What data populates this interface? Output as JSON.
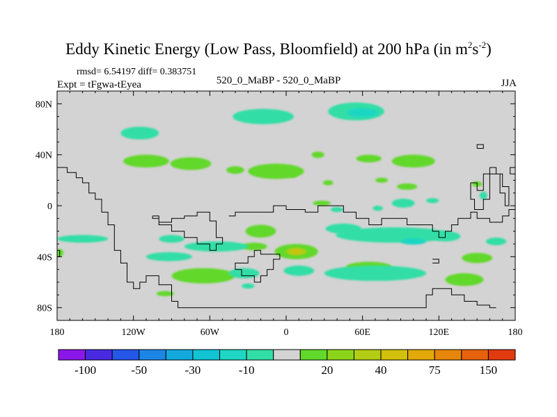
{
  "title": {
    "main": "Eddy Kinetic Energy (Low Pass, Bloomfield) at 200 hPa (in m",
    "exp1": "2",
    "mid": "s",
    "exp2": "-2",
    "close": ")"
  },
  "stats_label": "rmsd= 6.54197 diff= 0.383751",
  "experiment_label": "Expt = tFgwa-tEyea",
  "comparison_label": "520_0_MaBP - 520_0_MaBP",
  "season_label": "JJA",
  "chart_data": {
    "type": "heatmap",
    "title": "Eddy Kinetic Energy (Low Pass, Bloomfield) at 200 hPa (in m2s-2)",
    "subtitle": "520_0_MaBP - 520_0_MaBP",
    "xlim": [
      -180,
      180
    ],
    "ylim": [
      -90,
      90
    ],
    "x_ticks": [
      {
        "value": -180,
        "label": "180"
      },
      {
        "value": -120,
        "label": "120W"
      },
      {
        "value": -60,
        "label": "60W"
      },
      {
        "value": 0,
        "label": "0"
      },
      {
        "value": 60,
        "label": "60E"
      },
      {
        "value": 120,
        "label": "120E"
      },
      {
        "value": 180,
        "label": "180"
      }
    ],
    "y_ticks": [
      {
        "value": 80,
        "label": "80N"
      },
      {
        "value": 40,
        "label": "40N"
      },
      {
        "value": 0,
        "label": "0"
      },
      {
        "value": -40,
        "label": "40S"
      },
      {
        "value": -80,
        "label": "80S"
      }
    ],
    "colorbar": {
      "colors": [
        "#8a17e8",
        "#4a2ae0",
        "#2457e8",
        "#1c86e6",
        "#14a9dc",
        "#12c3d4",
        "#1fd6c4",
        "#33dea6",
        "#d3d3d3",
        "#62d82a",
        "#8cd41c",
        "#b3cc14",
        "#d2c00c",
        "#e3a80a",
        "#e6860a",
        "#e6620c",
        "#e23a10"
      ],
      "labels": [
        {
          "boundary": 1,
          "text": "-100"
        },
        {
          "boundary": 3,
          "text": "-50"
        },
        {
          "boundary": 5,
          "text": "-30"
        },
        {
          "boundary": 7,
          "text": "-10"
        },
        {
          "boundary": 10,
          "text": "20"
        },
        {
          "boundary": 12,
          "text": "40"
        },
        {
          "boundary": 14,
          "text": "75"
        },
        {
          "boundary": 16,
          "text": "150"
        }
      ]
    },
    "field_background": "#d3d3d3",
    "anomalies": [
      {
        "lon": -18,
        "lat": 70,
        "rlon": 24,
        "rlat": 6,
        "color": "#33dea6"
      },
      {
        "lon": 55,
        "lat": 74,
        "rlon": 22,
        "rlat": 7,
        "color": "#33dea6"
      },
      {
        "lon": 60,
        "lat": 73,
        "rlon": 12,
        "rlat": 3.5,
        "color": "#1fd6c4"
      },
      {
        "lon": -115,
        "lat": 57,
        "rlon": 15,
        "rlat": 5,
        "color": "#33dea6"
      },
      {
        "lon": -110,
        "lat": 35,
        "rlon": 18,
        "rlat": 5,
        "color": "#62d82a"
      },
      {
        "lon": -75,
        "lat": 33,
        "rlon": 16,
        "rlat": 5,
        "color": "#62d82a"
      },
      {
        "lon": -40,
        "lat": 28,
        "rlon": 7,
        "rlat": 3,
        "color": "#62d82a"
      },
      {
        "lon": -8,
        "lat": 27,
        "rlon": 22,
        "rlat": 6,
        "color": "#62d82a"
      },
      {
        "lon": 25,
        "lat": 40,
        "rlon": 5,
        "rlat": 2.5,
        "color": "#62d82a"
      },
      {
        "lon": 65,
        "lat": 37,
        "rlon": 10,
        "rlat": 3,
        "color": "#62d82a"
      },
      {
        "lon": 100,
        "lat": 35,
        "rlon": 17,
        "rlat": 5,
        "color": "#62d82a"
      },
      {
        "lon": 5,
        "lat": 24,
        "rlon": 4,
        "rlat": 2,
        "color": "#62d82a"
      },
      {
        "lon": 33,
        "lat": 18,
        "rlon": 4,
        "rlat": 2,
        "color": "#62d82a"
      },
      {
        "lon": 75,
        "lat": 20,
        "rlon": 5,
        "rlat": 2,
        "color": "#62d82a"
      },
      {
        "lon": 95,
        "lat": 15,
        "rlon": 8,
        "rlat": 2.5,
        "color": "#62d82a"
      },
      {
        "lon": 150,
        "lat": 17,
        "rlon": 4,
        "rlat": 2,
        "color": "#62d82a"
      },
      {
        "lon": 28,
        "lat": 2,
        "rlon": 7,
        "rlat": 2,
        "color": "#62d82a"
      },
      {
        "lon": 92,
        "lat": 2,
        "rlon": 9,
        "rlat": 3.5,
        "color": "#33dea6"
      },
      {
        "lon": 115,
        "lat": 4,
        "rlon": 5,
        "rlat": 2,
        "color": "#33dea6"
      },
      {
        "lon": 40,
        "lat": -3,
        "rlon": 5,
        "rlat": 2,
        "color": "#33dea6"
      },
      {
        "lon": 72,
        "lat": -2,
        "rlon": 4,
        "rlat": 2,
        "color": "#33dea6"
      },
      {
        "lon": 155,
        "lat": 8,
        "rlon": 3,
        "rlat": 3,
        "color": "#33dea6"
      },
      {
        "lon": 85,
        "lat": -23,
        "rlon": 46,
        "rlat": 6,
        "color": "#33dea6"
      },
      {
        "lon": 45,
        "lat": -18,
        "rlon": 14,
        "rlat": 4,
        "color": "#33dea6"
      },
      {
        "lon": 125,
        "lat": -24,
        "rlon": 12,
        "rlat": 4,
        "color": "#33dea6"
      },
      {
        "lon": 100,
        "lat": -28,
        "rlon": 10,
        "rlat": 2.5,
        "color": "#1fd6c4"
      },
      {
        "lon": 165,
        "lat": -28,
        "rlon": 8,
        "rlat": 3,
        "color": "#33dea6"
      },
      {
        "lon": -20,
        "lat": -20,
        "rlon": 12,
        "rlat": 5,
        "color": "#62d82a"
      },
      {
        "lon": -25,
        "lat": -32,
        "rlon": 10,
        "rlat": 3,
        "color": "#62d82a"
      },
      {
        "lon": -55,
        "lat": -32,
        "rlon": 25,
        "rlat": 4,
        "color": "#33dea6"
      },
      {
        "lon": -90,
        "lat": -26,
        "rlon": 10,
        "rlat": 3,
        "color": "#33dea6"
      },
      {
        "lon": -160,
        "lat": -26,
        "rlon": 20,
        "rlat": 3,
        "color": "#33dea6"
      },
      {
        "lon": -92,
        "lat": -40,
        "rlon": 18,
        "rlat": 3.5,
        "color": "#33dea6"
      },
      {
        "lon": -178,
        "lat": -37,
        "rlon": 3,
        "rlat": 3,
        "color": "#62d82a"
      },
      {
        "lon": 8,
        "lat": -36,
        "rlon": 17,
        "rlat": 6,
        "color": "#62d82a"
      },
      {
        "lon": 8,
        "lat": -36,
        "rlon": 8,
        "rlat": 3,
        "color": "#b3cc14"
      },
      {
        "lon": 8,
        "lat": -36,
        "rlon": 3.5,
        "rlat": 1.5,
        "color": "#d2c00c"
      },
      {
        "lon": 10,
        "lat": -51,
        "rlon": 12,
        "rlat": 4,
        "color": "#33dea6"
      },
      {
        "lon": -65,
        "lat": -55,
        "rlon": 25,
        "rlat": 6,
        "color": "#62d82a"
      },
      {
        "lon": -33,
        "lat": -53,
        "rlon": 12,
        "rlat": 4,
        "color": "#33dea6"
      },
      {
        "lon": -30,
        "lat": -63,
        "rlon": 5,
        "rlat": 2,
        "color": "#33dea6"
      },
      {
        "lon": 65,
        "lat": -48,
        "rlon": 18,
        "rlat": 4,
        "color": "#62d82a"
      },
      {
        "lon": 70,
        "lat": -53,
        "rlon": 40,
        "rlat": 6,
        "color": "#33dea6"
      },
      {
        "lon": 150,
        "lat": -41,
        "rlon": 12,
        "rlat": 4,
        "color": "#62d82a"
      },
      {
        "lon": 140,
        "lat": -58,
        "rlon": 15,
        "rlat": 5,
        "color": "#62d82a"
      },
      {
        "lon": -95,
        "lat": -69,
        "rlon": 7,
        "rlat": 2,
        "color": "#62d82a"
      }
    ],
    "contours": [
      [
        [
          -180,
          30
        ],
        [
          -172,
          30
        ],
        [
          -172,
          26
        ],
        [
          -165,
          26
        ],
        [
          -165,
          22
        ],
        [
          -160,
          22
        ],
        [
          -160,
          18
        ],
        [
          -155,
          18
        ],
        [
          -155,
          10
        ],
        [
          -150,
          10
        ],
        [
          -150,
          5
        ],
        [
          -145,
          5
        ],
        [
          -145,
          -5
        ],
        [
          -140,
          -5
        ],
        [
          -140,
          -15
        ],
        [
          -135,
          -15
        ],
        [
          -135,
          -35
        ],
        [
          -130,
          -35
        ],
        [
          -130,
          -45
        ],
        [
          -125,
          -45
        ],
        [
          -125,
          -60
        ],
        [
          -120,
          -60
        ],
        [
          -120,
          -65
        ],
        [
          -115,
          -65
        ],
        [
          -115,
          -60
        ],
        [
          -110,
          -60
        ],
        [
          -110,
          -55
        ],
        [
          -100,
          -55
        ],
        [
          -100,
          -62
        ],
        [
          -90,
          -62
        ],
        [
          -90,
          -75
        ],
        [
          -85,
          -75
        ],
        [
          -85,
          -80
        ],
        [
          10,
          -80
        ],
        [
          110,
          -80
        ],
        [
          110,
          -70
        ],
        [
          115,
          -70
        ],
        [
          115,
          -65
        ],
        [
          130,
          -65
        ],
        [
          130,
          -70
        ],
        [
          140,
          -70
        ],
        [
          140,
          -75
        ],
        [
          150,
          -75
        ],
        [
          150,
          -78
        ],
        [
          160,
          -78
        ],
        [
          160,
          -80
        ],
        [
          165,
          -80
        ]
      ],
      [
        [
          -105,
          -8
        ],
        [
          -100,
          -8
        ],
        [
          -100,
          -13
        ],
        [
          -90,
          -13
        ],
        [
          -90,
          -10
        ],
        [
          -80,
          -10
        ],
        [
          -80,
          -8
        ],
        [
          -70,
          -8
        ],
        [
          -70,
          -5
        ],
        [
          -60,
          -5
        ],
        [
          -60,
          -12
        ],
        [
          -55,
          -12
        ],
        [
          -55,
          -25
        ],
        [
          -50,
          -25
        ],
        [
          -50,
          -30
        ],
        [
          -55,
          -30
        ],
        [
          -55,
          -35
        ],
        [
          -60,
          -35
        ],
        [
          -60,
          -30
        ],
        [
          -70,
          -30
        ],
        [
          -70,
          -25
        ],
        [
          -80,
          -25
        ],
        [
          -80,
          -20
        ],
        [
          -90,
          -20
        ],
        [
          -90,
          -15
        ],
        [
          -100,
          -15
        ],
        [
          -100,
          -10
        ],
        [
          -105,
          -10
        ],
        [
          -105,
          -8
        ]
      ],
      [
        [
          -25,
          -35
        ],
        [
          -20,
          -35
        ],
        [
          -20,
          -38
        ],
        [
          -5,
          -38
        ],
        [
          -5,
          -42
        ],
        [
          -10,
          -42
        ],
        [
          -10,
          -50
        ],
        [
          -15,
          -50
        ],
        [
          -15,
          -55
        ],
        [
          -20,
          -55
        ],
        [
          -20,
          -60
        ],
        [
          -25,
          -60
        ],
        [
          -25,
          -55
        ],
        [
          -35,
          -55
        ],
        [
          -35,
          -50
        ],
        [
          -40,
          -50
        ],
        [
          -40,
          -45
        ],
        [
          -30,
          -45
        ],
        [
          -30,
          -40
        ],
        [
          -25,
          -40
        ],
        [
          -25,
          -35
        ]
      ],
      [
        [
          -45,
          -8
        ],
        [
          -40,
          -8
        ],
        [
          -40,
          -5
        ],
        [
          -10,
          -5
        ],
        [
          -10,
          0
        ],
        [
          0,
          0
        ],
        [
          0,
          -3
        ],
        [
          15,
          -3
        ],
        [
          15,
          -5
        ],
        [
          25,
          -5
        ],
        [
          25,
          0
        ],
        [
          45,
          0
        ],
        [
          45,
          -5
        ],
        [
          55,
          -5
        ],
        [
          55,
          -10
        ],
        [
          65,
          -10
        ],
        [
          65,
          -15
        ],
        [
          75,
          -15
        ],
        [
          75,
          -10
        ],
        [
          95,
          -10
        ],
        [
          95,
          -15
        ],
        [
          115,
          -15
        ],
        [
          115,
          -20
        ],
        [
          120,
          -20
        ],
        [
          120,
          -25
        ],
        [
          125,
          -25
        ],
        [
          125,
          -20
        ],
        [
          130,
          -20
        ],
        [
          130,
          -15
        ],
        [
          135,
          -15
        ],
        [
          135,
          -10
        ],
        [
          145,
          -10
        ],
        [
          145,
          -5
        ],
        [
          150,
          -5
        ],
        [
          150,
          -10
        ],
        [
          160,
          -10
        ],
        [
          160,
          -13
        ],
        [
          170,
          -13
        ],
        [
          170,
          -8
        ],
        [
          175,
          -8
        ],
        [
          175,
          -3
        ],
        [
          180,
          -3
        ]
      ],
      [
        [
          -180,
          -40
        ],
        [
          -178,
          -40
        ],
        [
          -178,
          -35
        ],
        [
          -180,
          -35
        ]
      ],
      [
        [
          145,
          18
        ],
        [
          150,
          18
        ],
        [
          150,
          12
        ],
        [
          155,
          12
        ],
        [
          155,
          25
        ],
        [
          160,
          25
        ],
        [
          160,
          5
        ],
        [
          155,
          5
        ],
        [
          155,
          -3
        ],
        [
          148,
          -3
        ],
        [
          148,
          5
        ],
        [
          145,
          5
        ],
        [
          145,
          18
        ]
      ],
      [
        [
          160,
          30
        ],
        [
          165,
          30
        ],
        [
          165,
          25
        ],
        [
          170,
          25
        ],
        [
          170,
          15
        ],
        [
          175,
          15
        ],
        [
          175,
          0
        ],
        [
          172,
          0
        ],
        [
          172,
          10
        ],
        [
          168,
          10
        ],
        [
          168,
          25
        ],
        [
          160,
          25
        ],
        [
          160,
          30
        ]
      ],
      [
        [
          180,
          25
        ],
        [
          176,
          25
        ],
        [
          176,
          30
        ],
        [
          180,
          30
        ]
      ],
      [
        [
          150,
          45
        ],
        [
          155,
          45
        ],
        [
          155,
          48
        ],
        [
          150,
          48
        ],
        [
          150,
          45
        ]
      ],
      [
        [
          115,
          -42
        ],
        [
          120,
          -42
        ],
        [
          120,
          -45
        ],
        [
          115,
          -45
        ]
      ]
    ]
  }
}
